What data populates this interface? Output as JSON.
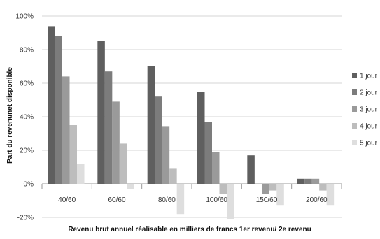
{
  "chart_data": {
    "type": "bar",
    "title": "",
    "xlabel": "Revenu brut annuel réalisable en milliers de francs 1er revenu/ 2e revenu",
    "ylabel": "Part du revenunet disponible",
    "ylim": [
      -20,
      100
    ],
    "yticks": [
      -20,
      0,
      20,
      40,
      60,
      80,
      100
    ],
    "ytick_labels": [
      "-20%",
      "0%",
      "20%",
      "40%",
      "60%",
      "80%",
      "100%"
    ],
    "grid": true,
    "legend_position": "right",
    "categories": [
      "40/60",
      "60/60",
      "80/60",
      "100/60",
      "150/60",
      "200/60"
    ],
    "series": [
      {
        "name": "1 jour",
        "color": "#5f5f5f",
        "values": [
          94,
          85,
          70,
          55,
          17,
          3
        ]
      },
      {
        "name": "2 jour",
        "color": "#7c7c7c",
        "values": [
          88,
          67,
          52,
          37,
          0,
          3
        ]
      },
      {
        "name": "3 jour",
        "color": "#9a9a9a",
        "values": [
          64,
          49,
          34,
          19,
          -6,
          3
        ]
      },
      {
        "name": "4 jour",
        "color": "#bdbdbd",
        "values": [
          35,
          24,
          9,
          -6,
          -4,
          -4
        ]
      },
      {
        "name": "5 jour",
        "color": "#dedede",
        "values": [
          12,
          -3,
          -18,
          -21,
          -13,
          -13
        ]
      }
    ]
  }
}
